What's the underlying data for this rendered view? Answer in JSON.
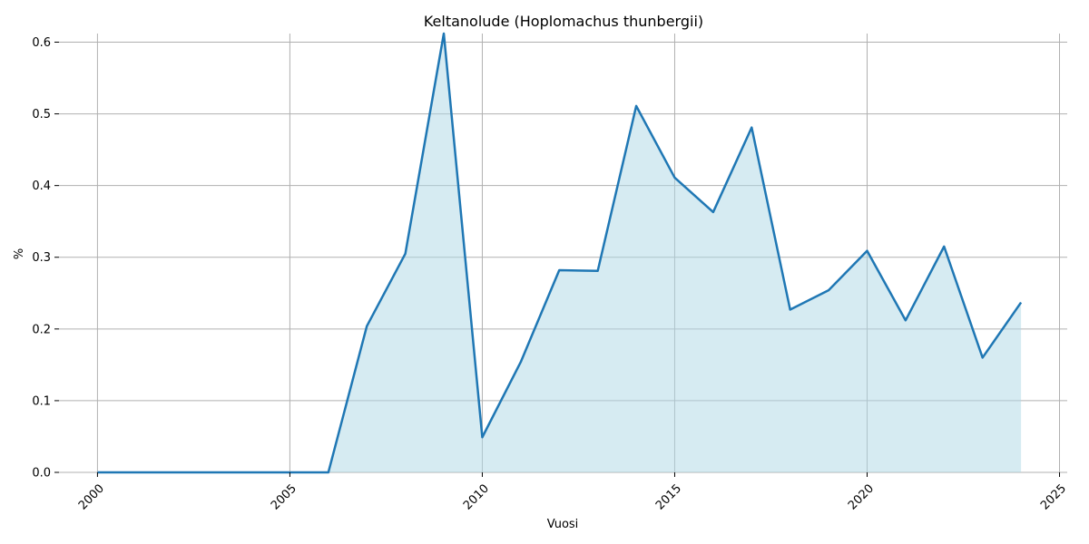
{
  "chart_data": {
    "type": "area",
    "title": "Keltanolude (Hoplomachus thunbergii)",
    "xlabel": "Vuosi",
    "ylabel": "%",
    "xlim": [
      1999,
      2025.2
    ],
    "ylim": [
      0,
      0.612
    ],
    "x_ticks": [
      2000,
      2005,
      2010,
      2015,
      2020,
      2025
    ],
    "y_ticks": [
      0.0,
      0.1,
      0.2,
      0.3,
      0.4,
      0.5,
      0.6
    ],
    "grid": true,
    "line_color": "#1f77b4",
    "fill_color": "#add8e6",
    "series": [
      {
        "x": [
          2000,
          2001,
          2002,
          2003,
          2004,
          2005,
          2006,
          2007,
          2008,
          2009,
          2010,
          2011,
          2012,
          2013,
          2014,
          2015,
          2016,
          2017,
          2018,
          2019,
          2020,
          2021,
          2022,
          2023,
          2024
        ],
        "values": [
          0,
          0,
          0,
          0,
          0,
          0,
          0,
          0.204,
          0.305,
          0.612,
          0.049,
          0.154,
          0.282,
          0.281,
          0.511,
          0.411,
          0.363,
          0.481,
          0.227,
          0.254,
          0.309,
          0.212,
          0.315,
          0.16,
          0.237
        ]
      }
    ]
  }
}
